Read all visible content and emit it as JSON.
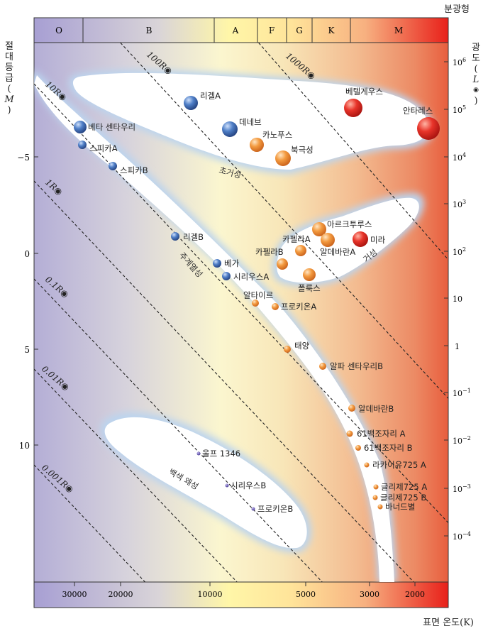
{
  "header": {
    "spectral_type_label": "분광형"
  },
  "spectral_classes": [
    "O",
    "B",
    "A",
    "F",
    "G",
    "K",
    "M"
  ],
  "axes": {
    "left_title": "절대등급 (M)",
    "left_title_chars": [
      "절",
      "대",
      "등",
      "급",
      "(",
      "M",
      ")"
    ],
    "right_title_chars": [
      "광",
      "도",
      "(",
      "L",
      "◉",
      ")"
    ],
    "bottom_title": "표면 온도(K)",
    "magnitude_ticks": [
      "−5",
      "0",
      "5",
      "10"
    ],
    "luminosity_ticks": [
      {
        "base": "10",
        "exp": "6"
      },
      {
        "base": "10",
        "exp": "5"
      },
      {
        "base": "10",
        "exp": "4"
      },
      {
        "base": "10",
        "exp": "3"
      },
      {
        "base": "10",
        "exp": "2"
      },
      {
        "base": "10",
        "exp": ""
      },
      {
        "base": "1",
        "exp": ""
      },
      {
        "base": "10",
        "exp": "−1"
      },
      {
        "base": "10",
        "exp": "−2"
      },
      {
        "base": "10",
        "exp": "−3"
      },
      {
        "base": "10",
        "exp": "−4"
      }
    ],
    "temperature_ticks": [
      "30000",
      "20000",
      "10000",
      "5000",
      "3000",
      "2000"
    ]
  },
  "radius_lines": [
    "1000R◉",
    "100R◉",
    "10R◉",
    "1R◉",
    "0.1R◉",
    "0.01R◉",
    "0.001R◉"
  ],
  "regions": {
    "supergiants": "초거성",
    "giants": "거성",
    "main_sequence": "주계열성",
    "white_dwarfs": "백색 왜성"
  },
  "stars": [
    {
      "name": "리겔A",
      "color": "blue"
    },
    {
      "name": "베텔게우스",
      "color": "red"
    },
    {
      "name": "베타 센타우리",
      "color": "blue"
    },
    {
      "name": "데네브",
      "color": "blue"
    },
    {
      "name": "안타레스",
      "color": "red"
    },
    {
      "name": "스피카A",
      "color": "blue"
    },
    {
      "name": "카노푸스",
      "color": "orange"
    },
    {
      "name": "북극성",
      "color": "orange"
    },
    {
      "name": "스피카B",
      "color": "blue"
    },
    {
      "name": "아르크투루스",
      "color": "orange"
    },
    {
      "name": "카펠라A",
      "color": "orange"
    },
    {
      "name": "미라",
      "color": "red"
    },
    {
      "name": "리겔B",
      "color": "blue"
    },
    {
      "name": "카펠라B",
      "color": "orange"
    },
    {
      "name": "알데바란A",
      "color": "orange"
    },
    {
      "name": "베가",
      "color": "blue"
    },
    {
      "name": "시리우스A",
      "color": "blue"
    },
    {
      "name": "폴룩스",
      "color": "orange"
    },
    {
      "name": "알타이르",
      "color": "orange"
    },
    {
      "name": "프로키온A",
      "color": "orange"
    },
    {
      "name": "태양",
      "color": "orange"
    },
    {
      "name": "알파 센타우리B",
      "color": "orange"
    },
    {
      "name": "알데바란B",
      "color": "orange"
    },
    {
      "name": "61백조자리 A",
      "color": "orange"
    },
    {
      "name": "61백조자리 B",
      "color": "orange"
    },
    {
      "name": "라카이유725 A",
      "color": "orange"
    },
    {
      "name": "글리제725 A",
      "color": "orange"
    },
    {
      "name": "글리제725 B",
      "color": "orange"
    },
    {
      "name": "바너드별",
      "color": "orange"
    },
    {
      "name": "울프 1346",
      "color": "purple"
    },
    {
      "name": "시리우스B",
      "color": "purple"
    },
    {
      "name": "프로키온B",
      "color": "purple"
    }
  ],
  "colors": {
    "blue_star": "#3f6db5",
    "orange_star": "#f08a2c",
    "red_star": "#e2231a",
    "purple_star": "#5a4aa0",
    "band_glow": "#bcd4ee"
  }
}
